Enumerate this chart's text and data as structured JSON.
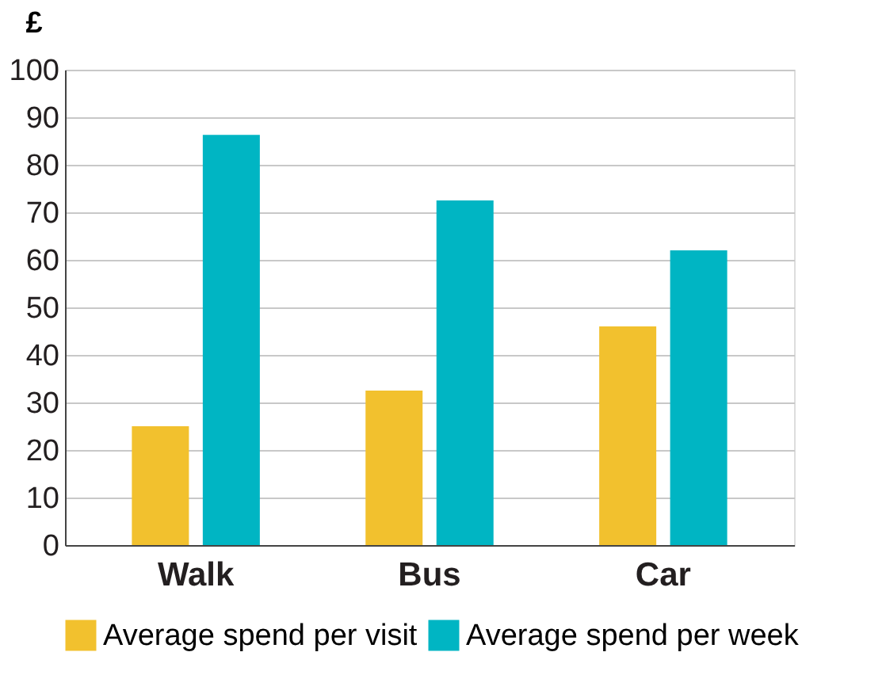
{
  "chart_data": {
    "type": "bar",
    "ylabel": "£",
    "categories": [
      "Walk",
      "Bus",
      "Car"
    ],
    "series": [
      {
        "name": "Average spend per visit",
        "color": "#f2c12e",
        "values": [
          25,
          32.5,
          46
        ]
      },
      {
        "name": "Average spend per week",
        "color": "#00b5c3",
        "values": [
          86.3,
          72.5,
          62
        ]
      }
    ],
    "ylim": [
      0,
      100
    ],
    "yticks": [
      0,
      10,
      20,
      30,
      40,
      50,
      60,
      70,
      80,
      90,
      100
    ],
    "grid": "y",
    "legend": "bottom"
  }
}
